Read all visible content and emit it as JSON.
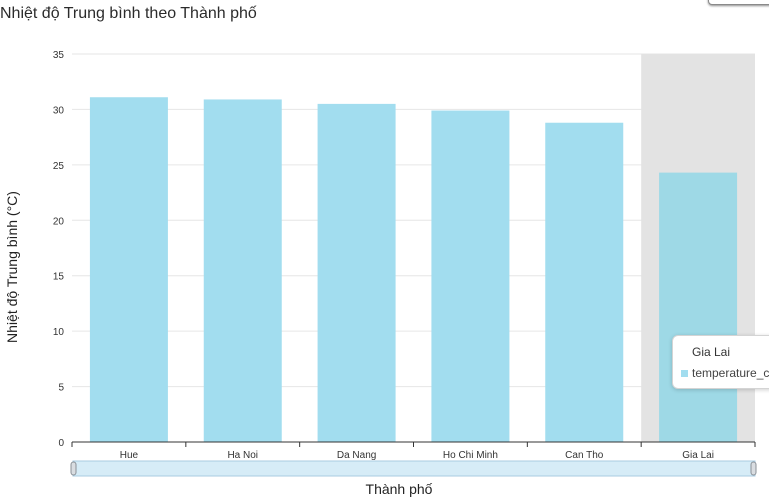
{
  "colors": {
    "bar": "#a2ddef",
    "bar_highlight": "#9ed9e6",
    "highlight_band": "#e3e3e3",
    "gridline": "#e6e6e6",
    "axis": "#333333",
    "slider_fill": "#d6ecf7",
    "slider_border": "#a8cbe2"
  },
  "chart_data": {
    "type": "bar",
    "title": "Nhiệt độ Trung bình theo Thành phố",
    "xlabel": "Thành phố",
    "ylabel": "Nhiệt độ Trung bình (°C)",
    "categories": [
      "Hue",
      "Ha Noi",
      "Da Nang",
      "Ho Chi Minh",
      "Can Tho",
      "Gia Lai"
    ],
    "series": [
      {
        "values": [
          31.1,
          30.9,
          30.5,
          29.9,
          28.8,
          24.3
        ]
      }
    ],
    "ylim": [
      0,
      35
    ],
    "yticks": [
      0,
      5,
      10,
      15,
      20,
      25,
      30,
      35
    ],
    "grid": true,
    "highlighted_category": "Gia Lai"
  },
  "tooltip": {
    "title": "Gia Lai",
    "series_label": "temperature_c"
  }
}
